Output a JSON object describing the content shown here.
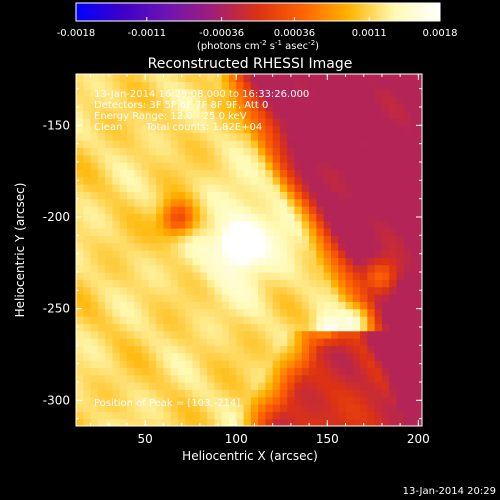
{
  "chart_data": {
    "type": "heatmap",
    "title": "Reconstructed RHESSI Image",
    "xlabel": "Heliocentric X (arcsec)",
    "ylabel": "Heliocentric Y (arcsec)",
    "xlim": [
      12,
      202
    ],
    "ylim": [
      -314,
      -122
    ],
    "xticks": [
      "50",
      "100",
      "150",
      "200"
    ],
    "xtick_values": [
      50,
      100,
      150,
      200
    ],
    "yticks": [
      "-150",
      "-200",
      "-250",
      "-300"
    ],
    "ytick_values": [
      -150,
      -200,
      -250,
      -300
    ],
    "colorbar": {
      "ticks": [
        "-0.0018",
        "-0.0011",
        "-0.00036",
        "0.00036",
        "0.0011",
        "0.0018"
      ],
      "tick_values": [
        -0.0018,
        -0.0011,
        -0.00036,
        0.00036,
        0.0011,
        0.0018
      ],
      "range": [
        -0.0018,
        0.0018
      ],
      "unit_label": "(photons cm",
      "unit_exp1": "-2",
      "unit_mid": " s",
      "unit_exp2": "-1",
      "unit_mid2": " asec",
      "unit_exp3": "-2",
      "unit_end": ")",
      "colors": [
        "#0000ff",
        "#3c00c8",
        "#6e14b4",
        "#a01e78",
        "#dc3214",
        "#ff6400",
        "#ffb400",
        "#fffab4",
        "#ffffff"
      ]
    },
    "annotations": {
      "line1": "13-Jan-2014 16:29:08.000 to 16:33:26.000",
      "line2": "Detectors: 3F 5F 6F 7F 8F 9F, Att 0",
      "line3": "Energy Range: 12.0 - 25.0 keV",
      "line4_a": "Clean",
      "line4_b": "Total counts: 1.82E+04",
      "peak": "Position of Peak = [103,-214]"
    },
    "peak": {
      "x": 103,
      "y": -214,
      "value": 0.0018
    },
    "dark_spot": {
      "x": 68,
      "y": -201
    },
    "timestamp": "13-Jan-2014 20:29"
  }
}
